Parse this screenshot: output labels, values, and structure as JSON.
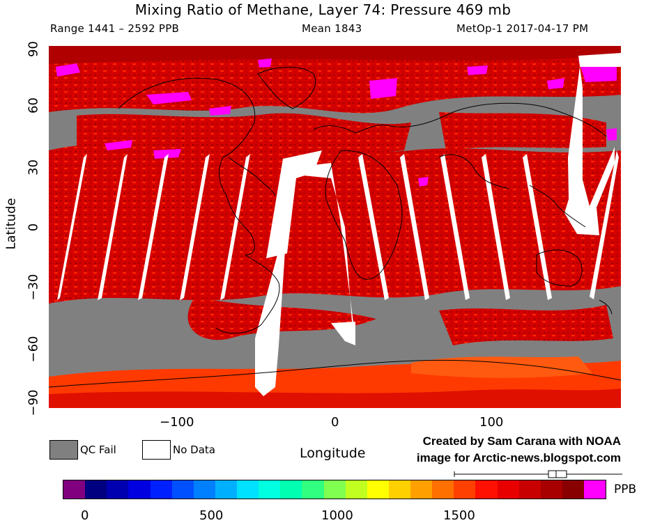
{
  "header": {
    "title": "Mixing Ratio of Methane, Layer 74: Pressure 469 mb",
    "range": "Range 1441 – 2592 PPB",
    "mean": "Mean 1843",
    "satellite": "MetOp-1 2017-04-17 PM"
  },
  "map": {
    "x_axis_label": "Longitude",
    "y_axis_label": "Latitude",
    "x_ticks": [
      "−100",
      "0",
      "100"
    ],
    "y_ticks": [
      "90",
      "60",
      "30",
      "0",
      "−30",
      "−60",
      "−90"
    ],
    "colors": {
      "qc_fail": "#808080",
      "no_data": "#ffffff",
      "high_methane": "#ff00ff",
      "typical_methane": "#d40000",
      "dark_red": "#9e0000",
      "orange_red": "#ff3a00"
    }
  },
  "legend": {
    "qc_fail": "QC Fail",
    "no_data": "No Data"
  },
  "credit": {
    "line1": "Created by Sam Carana with NOAA",
    "line2": "image for Arctic-news.blogspot.com"
  },
  "colorbar": {
    "unit": "PPB",
    "ticks": [
      "0",
      "500",
      "1000",
      "1500"
    ],
    "colors": [
      "#800080",
      "#000080",
      "#0000b0",
      "#0000e0",
      "#0020ff",
      "#0050ff",
      "#0080ff",
      "#00b0ff",
      "#00e0ff",
      "#00ffe0",
      "#00ffb0",
      "#30ff80",
      "#80ff50",
      "#c0ff20",
      "#ffff00",
      "#ffd000",
      "#ffa000",
      "#ff7000",
      "#ff4000",
      "#ff1000",
      "#e80000",
      "#c80000",
      "#a80000",
      "#880000",
      "#ff00ff"
    ]
  }
}
